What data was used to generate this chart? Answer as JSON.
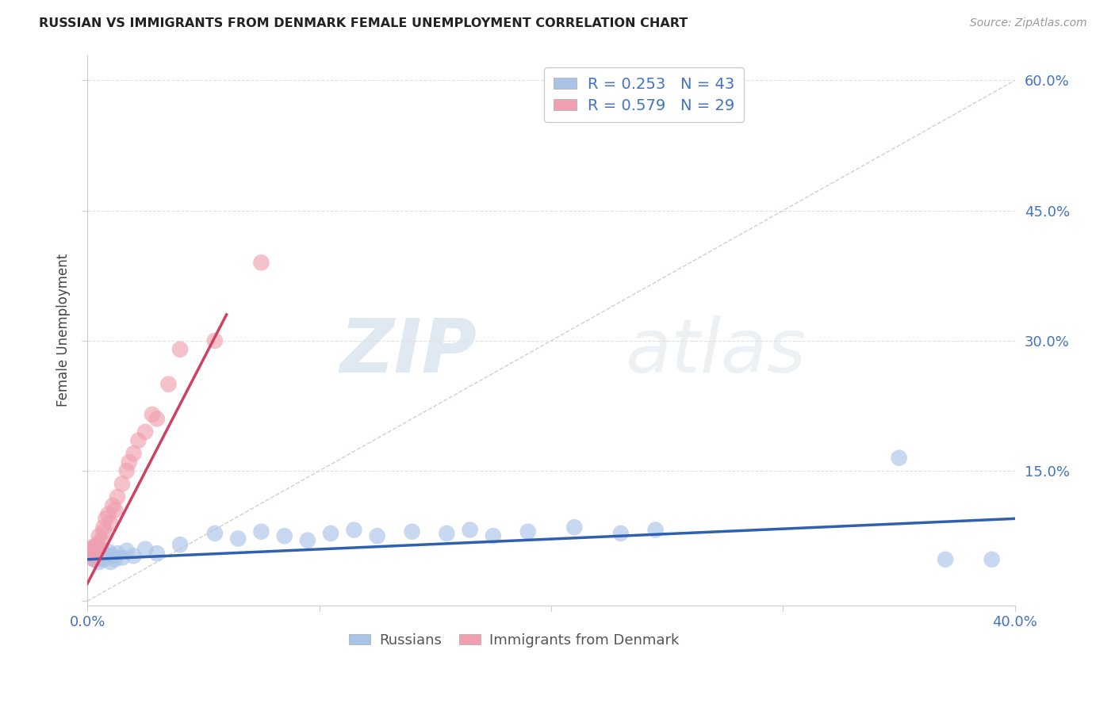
{
  "title": "RUSSIAN VS IMMIGRANTS FROM DENMARK FEMALE UNEMPLOYMENT CORRELATION CHART",
  "source": "Source: ZipAtlas.com",
  "ylabel": "Female Unemployment",
  "watermark_zip": "ZIP",
  "watermark_atlas": "atlas",
  "xlim": [
    0.0,
    0.4
  ],
  "ylim": [
    -0.005,
    0.63
  ],
  "xticks": [
    0.0,
    0.1,
    0.2,
    0.3,
    0.4
  ],
  "yticks": [
    0.0,
    0.15,
    0.3,
    0.45,
    0.6
  ],
  "xtick_labels": [
    "0.0%",
    "",
    "",
    "",
    "40.0%"
  ],
  "ytick_labels": [
    "",
    "15.0%",
    "30.0%",
    "45.0%",
    "60.0%"
  ],
  "legend_bottom": [
    "Russians",
    "Immigrants from Denmark"
  ],
  "scatter_blue": "#aac4e8",
  "scatter_pink": "#f0a0b0",
  "blue_line_color": "#3060b0",
  "pink_line_color": "#d04060",
  "dashed_line_color": "#d0c0c0",
  "grid_color": "#e0e0e0",
  "background_color": "#ffffff",
  "title_color": "#222222",
  "source_color": "#999999",
  "tick_color": "#4472c4",
  "ylabel_color": "#444444",
  "russians_x": [
    0.001,
    0.002,
    0.002,
    0.003,
    0.003,
    0.004,
    0.004,
    0.005,
    0.005,
    0.006,
    0.006,
    0.007,
    0.008,
    0.009,
    0.01,
    0.011,
    0.012,
    0.013,
    0.015,
    0.017,
    0.02,
    0.025,
    0.03,
    0.04,
    0.055,
    0.065,
    0.075,
    0.085,
    0.095,
    0.105,
    0.115,
    0.125,
    0.14,
    0.155,
    0.165,
    0.175,
    0.19,
    0.21,
    0.23,
    0.245,
    0.35,
    0.37,
    0.39
  ],
  "russians_y": [
    0.055,
    0.05,
    0.06,
    0.048,
    0.058,
    0.052,
    0.062,
    0.045,
    0.055,
    0.05,
    0.06,
    0.048,
    0.053,
    0.057,
    0.045,
    0.052,
    0.048,
    0.055,
    0.05,
    0.058,
    0.052,
    0.06,
    0.055,
    0.065,
    0.078,
    0.072,
    0.08,
    0.075,
    0.07,
    0.078,
    0.082,
    0.075,
    0.08,
    0.078,
    0.082,
    0.075,
    0.08,
    0.085,
    0.078,
    0.082,
    0.165,
    0.048,
    0.048
  ],
  "denmark_x": [
    0.001,
    0.002,
    0.002,
    0.003,
    0.003,
    0.004,
    0.005,
    0.005,
    0.006,
    0.007,
    0.007,
    0.008,
    0.009,
    0.01,
    0.011,
    0.012,
    0.013,
    0.015,
    0.017,
    0.018,
    0.02,
    0.022,
    0.025,
    0.028,
    0.03,
    0.035,
    0.04,
    0.055,
    0.075
  ],
  "denmark_y": [
    0.058,
    0.055,
    0.062,
    0.058,
    0.048,
    0.065,
    0.06,
    0.075,
    0.07,
    0.08,
    0.085,
    0.095,
    0.1,
    0.09,
    0.11,
    0.105,
    0.12,
    0.135,
    0.15,
    0.16,
    0.17,
    0.185,
    0.195,
    0.215,
    0.21,
    0.25,
    0.29,
    0.3,
    0.39
  ],
  "blue_line_x": [
    0.0,
    0.4
  ],
  "blue_line_y": [
    0.048,
    0.095
  ],
  "pink_line_x": [
    0.0,
    0.06
  ],
  "pink_line_y": [
    0.02,
    0.33
  ],
  "dash_line_x": [
    0.0,
    0.4
  ],
  "dash_line_y": [
    0.0,
    0.6
  ]
}
